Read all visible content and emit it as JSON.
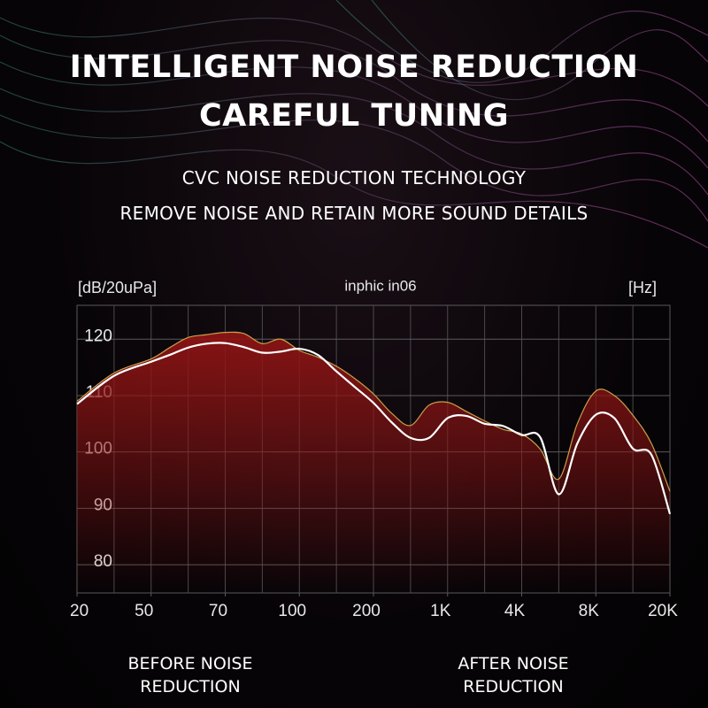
{
  "header": {
    "title_lines": [
      "INTELLIGENT NOISE REDUCTION",
      "CAREFUL TUNING"
    ],
    "subtitle_lines": [
      "CVC NOISE REDUCTION TECHNOLOGY",
      "REMOVE NOISE AND RETAIN MORE SOUND DETAILS"
    ]
  },
  "chart_data": {
    "type": "line",
    "title": "inphic in06",
    "y_label": "[dB/20uPa]",
    "x_label": "[Hz]",
    "xlim": [
      0,
      16
    ],
    "ylim": [
      75,
      126
    ],
    "xticks": [
      {
        "value": 0,
        "label": "20"
      },
      {
        "value": 2,
        "label": "50"
      },
      {
        "value": 4,
        "label": "70"
      },
      {
        "value": 6,
        "label": "100"
      },
      {
        "value": 8,
        "label": "200"
      },
      {
        "value": 10,
        "label": "1K"
      },
      {
        "value": 12,
        "label": "4K"
      },
      {
        "value": 14,
        "label": "8K"
      },
      {
        "value": 16,
        "label": "20K"
      }
    ],
    "yticks": [
      80,
      90,
      100,
      110,
      120
    ],
    "grid": true,
    "x": [
      0,
      1,
      2,
      2.5,
      3,
      3.5,
      4,
      4.5,
      5,
      5.5,
      6,
      6.5,
      7,
      7.5,
      8,
      8.5,
      9,
      9.5,
      10,
      10.5,
      11,
      11.5,
      12,
      12.5,
      13,
      13.5,
      14,
      14.5,
      15,
      15.5,
      16
    ],
    "series": [
      {
        "name": "BEFORE NOISE REDUCTION",
        "color": "#c9a04a",
        "fill": "#8e1414",
        "values": [
          109,
          114,
          116.5,
          118.5,
          120.3,
          120.8,
          121.2,
          121,
          119.2,
          120,
          118,
          116.8,
          115.2,
          113,
          110.3,
          106.8,
          104.7,
          108.3,
          108.8,
          107.2,
          105.5,
          104,
          103.2,
          100.5,
          95.2,
          105,
          110.8,
          110,
          106.5,
          101.5,
          93
        ]
      },
      {
        "name": "AFTER NOISE REDUCTION",
        "color": "#ffffff",
        "values": [
          108.5,
          113.5,
          116,
          117.2,
          118.5,
          119.2,
          119.3,
          118.6,
          117.6,
          117.8,
          118.3,
          117.2,
          114.3,
          111.5,
          108.7,
          105.2,
          102.5,
          102.5,
          106,
          106.4,
          105,
          104.6,
          103,
          102.6,
          92.5,
          101.5,
          106.6,
          106,
          100.6,
          99.5,
          89
        ]
      }
    ]
  }
}
